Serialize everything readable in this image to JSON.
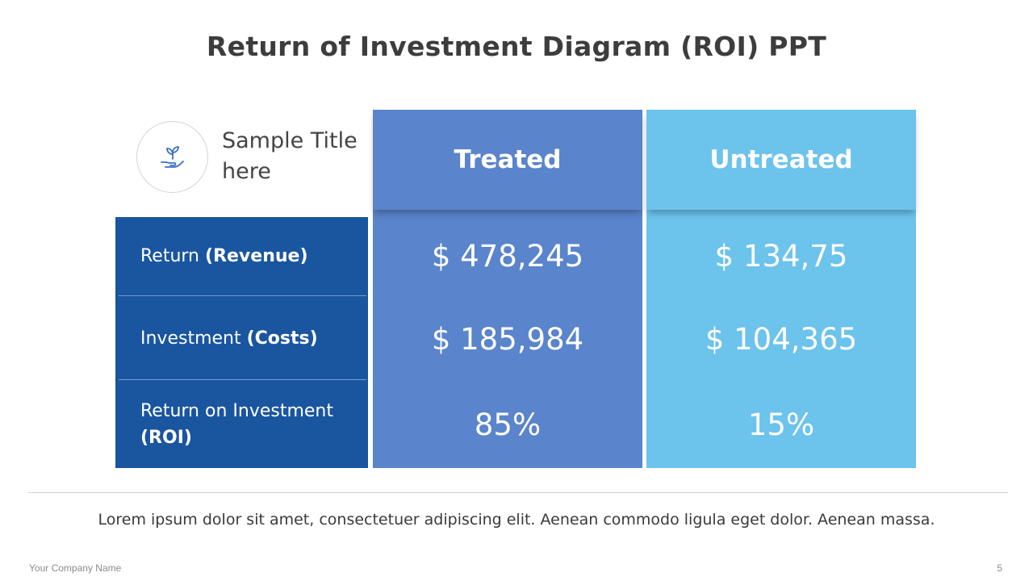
{
  "slide": {
    "title": "Return of Investment Diagram (ROI) PPT",
    "sample_title": "Sample Title here",
    "icon": "plant-in-hand-icon"
  },
  "table": {
    "columns": [
      "Treated",
      "Untreated"
    ],
    "rows": [
      {
        "label": "Return",
        "label_bold": "(Revenue)",
        "treated": "$ 478,245",
        "untreated": "$ 134,75"
      },
      {
        "label": "Investment",
        "label_bold": "(Costs)",
        "treated": "$ 185,984",
        "untreated": "$ 104,365"
      },
      {
        "label": "Return on Investment",
        "label_bold": "(ROI)",
        "treated": "85%",
        "untreated": "15%"
      }
    ]
  },
  "colors": {
    "label_bg": "#1a55a0",
    "treated_bg": "#5a84cb",
    "untreated_bg": "#6cc3ec"
  },
  "caption": "Lorem ipsum dolor sit amet, consectetuer adipiscing elit. Aenean commodo ligula eget dolor. Aenean massa.",
  "footer": {
    "company": "Your Company  Name",
    "page_number": "5"
  }
}
